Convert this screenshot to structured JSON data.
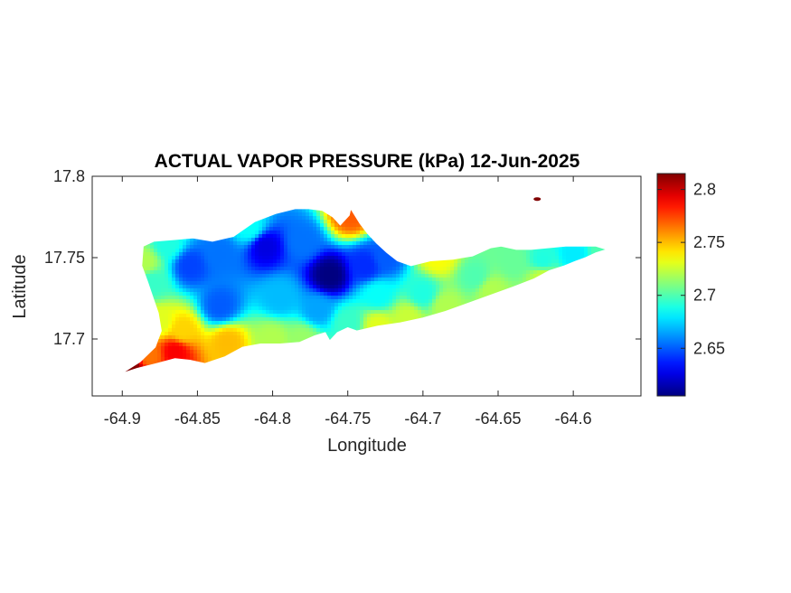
{
  "chart_data": {
    "type": "heatmap",
    "title": "ACTUAL VAPOR PRESSURE (kPa) 12-Jun-2025",
    "xlabel": "Longitude",
    "ylabel": "Latitude",
    "xlim": [
      -64.92,
      -64.555
    ],
    "ylim": [
      17.665,
      17.8
    ],
    "xticks": [
      -64.9,
      -64.85,
      -64.8,
      -64.75,
      -64.7,
      -64.65,
      -64.6
    ],
    "xtick_labels": [
      "-64.9",
      "-64.85",
      "-64.8",
      "-64.75",
      "-64.7",
      "-64.65",
      "-64.6"
    ],
    "yticks": [
      17.7,
      17.75,
      17.8
    ],
    "ytick_labels": [
      "17.7",
      "17.75",
      "17.8"
    ],
    "colorbar": {
      "colormap": "jet",
      "clim": [
        2.605,
        2.815
      ],
      "ticks": [
        2.65,
        2.7,
        2.75,
        2.8
      ],
      "tick_labels": [
        "2.65",
        "2.7",
        "2.75",
        "2.8"
      ]
    },
    "coast_outline": [
      [
        -64.9,
        17.679
      ],
      [
        -64.888,
        17.686
      ],
      [
        -64.878,
        17.695
      ],
      [
        -64.874,
        17.705
      ],
      [
        -64.876,
        17.716
      ],
      [
        -64.879,
        17.724
      ],
      [
        -64.883,
        17.735
      ],
      [
        -64.887,
        17.745
      ],
      [
        -64.886,
        17.757
      ],
      [
        -64.879,
        17.76
      ],
      [
        -64.866,
        17.761
      ],
      [
        -64.853,
        17.762
      ],
      [
        -64.84,
        17.76
      ],
      [
        -64.826,
        17.763
      ],
      [
        -64.812,
        17.772
      ],
      [
        -64.798,
        17.777
      ],
      [
        -64.785,
        17.78
      ],
      [
        -64.776,
        17.78
      ],
      [
        -64.767,
        17.779
      ],
      [
        -64.76,
        17.775
      ],
      [
        -64.755,
        17.77
      ],
      [
        -64.749,
        17.776
      ],
      [
        -64.748,
        17.78
      ],
      [
        -64.742,
        17.771
      ],
      [
        -64.737,
        17.765
      ],
      [
        -64.731,
        17.759
      ],
      [
        -64.724,
        17.753
      ],
      [
        -64.717,
        17.748
      ],
      [
        -64.708,
        17.745
      ],
      [
        -64.695,
        17.748
      ],
      [
        -64.68,
        17.749
      ],
      [
        -64.667,
        17.751
      ],
      [
        -64.655,
        17.756
      ],
      [
        -64.648,
        17.757
      ],
      [
        -64.638,
        17.755
      ],
      [
        -64.628,
        17.755
      ],
      [
        -64.617,
        17.756
      ],
      [
        -64.605,
        17.757
      ],
      [
        -64.595,
        17.757
      ],
      [
        -64.585,
        17.757
      ],
      [
        -64.578,
        17.755
      ],
      [
        -64.585,
        17.753
      ],
      [
        -64.592,
        17.75
      ],
      [
        -64.598,
        17.748
      ],
      [
        -64.606,
        17.745
      ],
      [
        -64.616,
        17.742
      ],
      [
        -64.626,
        17.737
      ],
      [
        -64.64,
        17.732
      ],
      [
        -64.655,
        17.727
      ],
      [
        -64.67,
        17.722
      ],
      [
        -64.685,
        17.717
      ],
      [
        -64.7,
        17.713
      ],
      [
        -64.715,
        17.71
      ],
      [
        -64.73,
        17.708
      ],
      [
        -64.744,
        17.705
      ],
      [
        -64.75,
        17.707
      ],
      [
        -64.757,
        17.704
      ],
      [
        -64.762,
        17.699
      ],
      [
        -64.765,
        17.704
      ],
      [
        -64.772,
        17.702
      ],
      [
        -64.782,
        17.698
      ],
      [
        -64.795,
        17.697
      ],
      [
        -64.808,
        17.697
      ],
      [
        -64.82,
        17.695
      ],
      [
        -64.832,
        17.689
      ],
      [
        -64.845,
        17.685
      ],
      [
        -64.855,
        17.687
      ],
      [
        -64.865,
        17.688
      ],
      [
        -64.877,
        17.685
      ],
      [
        -64.89,
        17.682
      ],
      [
        -64.9,
        17.679
      ]
    ],
    "field_samples": [
      {
        "lon": -64.855,
        "lat": 17.745,
        "value": 2.645
      },
      {
        "lon": -64.835,
        "lat": 17.752,
        "value": 2.655
      },
      {
        "lon": -64.835,
        "lat": 17.72,
        "value": 2.65
      },
      {
        "lon": -64.805,
        "lat": 17.757,
        "value": 2.625
      },
      {
        "lon": -64.78,
        "lat": 17.76,
        "value": 2.655
      },
      {
        "lon": -64.762,
        "lat": 17.739,
        "value": 2.605
      },
      {
        "lon": -64.738,
        "lat": 17.745,
        "value": 2.64
      },
      {
        "lon": -64.725,
        "lat": 17.75,
        "value": 2.65
      },
      {
        "lon": -64.795,
        "lat": 17.725,
        "value": 2.67
      },
      {
        "lon": -64.77,
        "lat": 17.718,
        "value": 2.665
      },
      {
        "lon": -64.75,
        "lat": 17.71,
        "value": 2.695
      },
      {
        "lon": -64.73,
        "lat": 17.727,
        "value": 2.685
      },
      {
        "lon": -64.7,
        "lat": 17.728,
        "value": 2.69
      },
      {
        "lon": -64.685,
        "lat": 17.72,
        "value": 2.72
      },
      {
        "lon": -64.665,
        "lat": 17.738,
        "value": 2.7
      },
      {
        "lon": -64.655,
        "lat": 17.73,
        "value": 2.72
      },
      {
        "lon": -64.64,
        "lat": 17.748,
        "value": 2.705
      },
      {
        "lon": -64.62,
        "lat": 17.748,
        "value": 2.69
      },
      {
        "lon": -64.6,
        "lat": 17.752,
        "value": 2.68
      },
      {
        "lon": -64.58,
        "lat": 17.755,
        "value": 2.7
      },
      {
        "lon": -64.87,
        "lat": 17.758,
        "value": 2.69
      },
      {
        "lon": -64.88,
        "lat": 17.735,
        "value": 2.695
      },
      {
        "lon": -64.885,
        "lat": 17.747,
        "value": 2.72
      },
      {
        "lon": -64.875,
        "lat": 17.71,
        "value": 2.73
      },
      {
        "lon": -64.86,
        "lat": 17.705,
        "value": 2.745
      },
      {
        "lon": -64.83,
        "lat": 17.698,
        "value": 2.75
      },
      {
        "lon": -64.8,
        "lat": 17.7,
        "value": 2.72
      },
      {
        "lon": -64.78,
        "lat": 17.7,
        "value": 2.715
      },
      {
        "lon": -64.865,
        "lat": 17.692,
        "value": 2.79
      },
      {
        "lon": -64.882,
        "lat": 17.69,
        "value": 2.765
      },
      {
        "lon": -64.895,
        "lat": 17.683,
        "value": 2.815
      },
      {
        "lon": -64.748,
        "lat": 17.776,
        "value": 2.77
      },
      {
        "lon": -64.815,
        "lat": 17.768,
        "value": 2.685
      },
      {
        "lon": -64.71,
        "lat": 17.713,
        "value": 2.725
      },
      {
        "lon": -64.73,
        "lat": 17.708,
        "value": 2.73
      },
      {
        "lon": -64.69,
        "lat": 17.75,
        "value": 2.735
      },
      {
        "lon": -64.62,
        "lat": 17.738,
        "value": 2.725
      }
    ],
    "islet": {
      "lon": -64.624,
      "lat": 17.786,
      "value": 2.815
    }
  }
}
